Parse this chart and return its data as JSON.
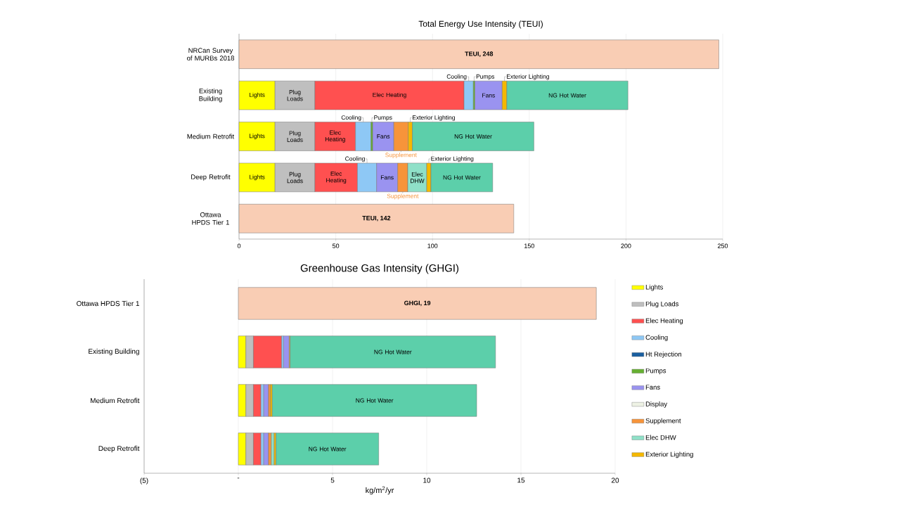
{
  "chart_data": [
    {
      "type": "bar",
      "orientation": "horizontal",
      "stacked": true,
      "grid": "x",
      "title": "Total Energy Use Intensity (TEUI)",
      "categories": [
        "NRCan Survey of MURBs 2018",
        "Existing Building",
        "Medium Retrofit",
        "Deep Retrofit",
        "Ottawa HPDS Tier 1"
      ],
      "xlim": [
        0,
        250
      ],
      "xticks": [
        0,
        50,
        100,
        150,
        200,
        250
      ],
      "series": [
        {
          "name": "Lights",
          "color": "#ffff00",
          "values": [
            null,
            18.6,
            18.6,
            18.6,
            null
          ]
        },
        {
          "name": "Plug Loads",
          "color": "#bfbfbf",
          "values": [
            null,
            20.6,
            20.6,
            20.6,
            null
          ]
        },
        {
          "name": "Elec Heating",
          "color": "#ff5050",
          "values": [
            null,
            77.1,
            21.0,
            22.0,
            null
          ]
        },
        {
          "name": "Cooling",
          "color": "#8ec8f5",
          "values": [
            null,
            4.8,
            8.0,
            9.9,
            null
          ]
        },
        {
          "name": "Pumps",
          "color": "#66b032",
          "values": [
            null,
            0.8,
            0.9,
            null,
            null
          ]
        },
        {
          "name": "Fans",
          "color": "#9a93f0",
          "values": [
            null,
            14.1,
            10.9,
            10.9,
            null
          ]
        },
        {
          "name": "Supplement",
          "color": "#f7943a",
          "values": [
            null,
            null,
            7.4,
            5.2,
            null
          ]
        },
        {
          "name": "Elec DHW",
          "color": "#8fe0c8",
          "values": [
            null,
            null,
            null,
            9.8,
            null
          ]
        },
        {
          "name": "Exterior Lighting",
          "color": "#f5b800",
          "values": [
            null,
            2.4,
            2.2,
            2.2,
            null
          ]
        },
        {
          "name": "NG Hot Water",
          "color": "#5ccfaa",
          "values": [
            null,
            62.6,
            62.8,
            31.9,
            null
          ]
        },
        {
          "color": "#f9cdb4",
          "values": [
            248,
            null,
            null,
            null,
            142
          ],
          "value_labels": [
            "TEUI, 248",
            null,
            null,
            null,
            "TEUI, 142"
          ]
        }
      ]
    },
    {
      "type": "bar",
      "orientation": "horizontal",
      "stacked": true,
      "grid": "x",
      "legend": "right",
      "title": "Greenhouse Gas Intensity (GHGI)",
      "xlabel": "kg/m$^{2}$/yr",
      "categories": [
        "Ottawa HPDS Tier 1",
        "Existing Building",
        "Medium Retrofit",
        "Deep Retrofit"
      ],
      "xlim": [
        -5,
        20
      ],
      "xticks": [
        {
          "value": -5,
          "label": "(5)"
        },
        {
          "value": 0,
          "label": "-"
        },
        5,
        10,
        15,
        20
      ],
      "series": [
        {
          "name": "Lights",
          "color": "#ffff00",
          "values": [
            null,
            0.4,
            0.4,
            0.4
          ]
        },
        {
          "name": "Plug Loads",
          "color": "#bfbfbf",
          "values": [
            null,
            0.4,
            0.4,
            0.4
          ]
        },
        {
          "name": "Elec Heating",
          "color": "#ff5050",
          "values": [
            null,
            1.5,
            0.4,
            0.4
          ]
        },
        {
          "name": "Cooling",
          "color": "#8ec8f5",
          "values": [
            null,
            0.1,
            0.15,
            0.15
          ]
        },
        {
          "name": "Ht Rejection",
          "color": "#1a5fa0",
          "values": [
            null,
            null,
            null,
            null
          ]
        },
        {
          "name": "Pumps",
          "color": "#66b032",
          "values": [
            null,
            null,
            null,
            null
          ]
        },
        {
          "name": "Fans",
          "color": "#9a93f0",
          "values": [
            null,
            0.3,
            0.25,
            0.25
          ]
        },
        {
          "name": "Display",
          "color": "#eef2e4",
          "values": [
            null,
            null,
            null,
            null
          ]
        },
        {
          "name": "Supplement",
          "color": "#f7943a",
          "values": [
            null,
            null,
            0.1,
            0.15
          ]
        },
        {
          "name": "Elec DHW",
          "color": "#8fe0c8",
          "values": [
            null,
            null,
            null,
            0.15
          ]
        },
        {
          "name": "Exterior Lighting",
          "color": "#f5b800",
          "values": [
            null,
            0.05,
            0.1,
            0.1
          ]
        },
        {
          "name": "NG Hot Water",
          "color": "#5ccfaa",
          "values": [
            null,
            10.9,
            10.85,
            5.45
          ]
        },
        {
          "color": "#f9cdb4",
          "values": [
            19,
            null,
            null,
            null
          ],
          "value_labels": [
            "GHGI, 19",
            null,
            null,
            null
          ]
        }
      ]
    }
  ]
}
